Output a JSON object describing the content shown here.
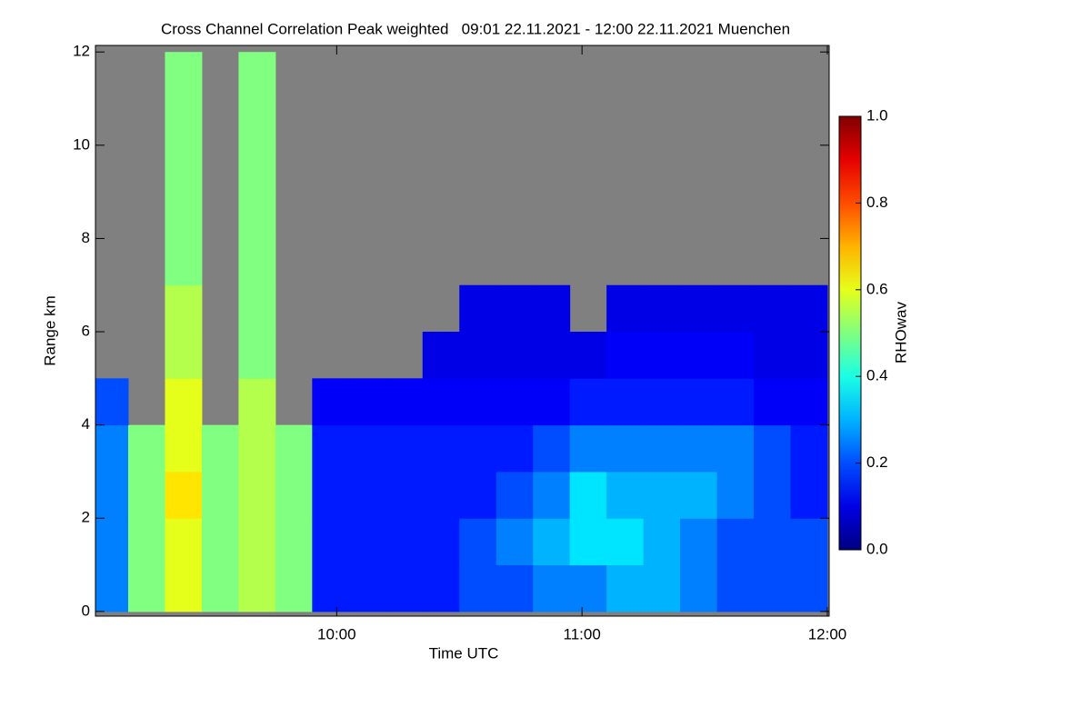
{
  "chart_data": {
    "type": "heatmap",
    "title": "Cross Channel Correlation Peak weighted   09:01 22.11.2021 - 12:00 22.11.2021 Muenchen",
    "xlabel": "Time UTC",
    "ylabel": "Range km",
    "xlim": [
      9.0167,
      12.0
    ],
    "ylim": [
      -0.1,
      12.14
    ],
    "xticks": [
      {
        "value": 10,
        "label": "10:00"
      },
      {
        "value": 11,
        "label": "11:00"
      },
      {
        "value": 12,
        "label": "12:00"
      }
    ],
    "yticks": [
      0,
      2,
      4,
      6,
      8,
      10,
      12
    ],
    "xbins": [
      9.0,
      9.15,
      9.3,
      9.45,
      9.6,
      9.75,
      9.9,
      10.05,
      10.2,
      10.35,
      10.5,
      10.65,
      10.8,
      10.95,
      11.1,
      11.25,
      11.4,
      11.55,
      11.7,
      11.85,
      12.0
    ],
    "ybins": [
      0,
      1,
      2,
      3,
      4,
      5,
      6,
      7,
      8,
      9,
      10,
      11,
      12
    ],
    "z": [
      [
        0.25,
        0.5,
        0.6,
        0.5,
        0.55,
        0.5,
        0.15,
        0.15,
        0.15,
        0.15,
        0.2,
        0.2,
        0.25,
        0.25,
        0.3,
        0.3,
        0.25,
        0.2,
        0.2,
        0.2
      ],
      [
        0.25,
        0.5,
        0.6,
        0.5,
        0.55,
        0.5,
        0.15,
        0.15,
        0.15,
        0.15,
        0.2,
        0.25,
        0.3,
        0.35,
        0.35,
        0.3,
        0.25,
        0.2,
        0.2,
        0.2
      ],
      [
        0.25,
        0.5,
        0.65,
        0.5,
        0.55,
        0.5,
        0.15,
        0.15,
        0.15,
        0.15,
        0.15,
        0.2,
        0.25,
        0.35,
        0.3,
        0.3,
        0.3,
        0.25,
        0.2,
        0.15
      ],
      [
        0.25,
        0.5,
        0.6,
        0.5,
        0.55,
        0.5,
        0.15,
        0.15,
        0.15,
        0.15,
        0.15,
        0.15,
        0.2,
        0.25,
        0.25,
        0.25,
        0.25,
        0.25,
        0.2,
        0.15
      ],
      [
        0.2,
        null,
        0.6,
        null,
        0.55,
        null,
        0.12,
        0.12,
        0.12,
        0.12,
        0.12,
        0.12,
        0.12,
        0.15,
        0.15,
        0.15,
        0.15,
        0.15,
        0.12,
        0.12
      ],
      [
        null,
        null,
        0.55,
        null,
        0.5,
        null,
        null,
        null,
        null,
        0.1,
        0.1,
        0.1,
        0.1,
        0.1,
        0.12,
        0.12,
        0.12,
        0.12,
        0.1,
        0.1
      ],
      [
        null,
        null,
        0.55,
        null,
        0.5,
        null,
        null,
        null,
        null,
        null,
        0.1,
        0.1,
        0.1,
        null,
        0.1,
        0.1,
        0.1,
        0.1,
        0.1,
        0.1
      ],
      [
        null,
        null,
        0.5,
        null,
        0.5,
        null,
        null,
        null,
        null,
        null,
        null,
        null,
        null,
        null,
        null,
        null,
        null,
        null,
        null,
        null
      ],
      [
        null,
        null,
        0.5,
        null,
        0.5,
        null,
        null,
        null,
        null,
        null,
        null,
        null,
        null,
        null,
        null,
        null,
        null,
        null,
        null,
        null
      ],
      [
        null,
        null,
        0.5,
        null,
        0.5,
        null,
        null,
        null,
        null,
        null,
        null,
        null,
        null,
        null,
        null,
        null,
        null,
        null,
        null,
        null
      ],
      [
        null,
        null,
        0.5,
        null,
        0.5,
        null,
        null,
        null,
        null,
        null,
        null,
        null,
        null,
        null,
        null,
        null,
        null,
        null,
        null,
        null
      ],
      [
        null,
        null,
        0.5,
        null,
        0.5,
        null,
        null,
        null,
        null,
        null,
        null,
        null,
        null,
        null,
        null,
        null,
        null,
        null,
        null,
        null
      ]
    ],
    "missing_color": "#808080",
    "colormap": "jet",
    "colorbar": {
      "label": "RHOwav",
      "lim": [
        0,
        1
      ],
      "ticks": [
        {
          "value": 0,
          "label": "0.0"
        },
        {
          "value": 0.2,
          "label": "0.2"
        },
        {
          "value": 0.4,
          "label": "0.4"
        },
        {
          "value": 0.6,
          "label": "0.6"
        },
        {
          "value": 0.8,
          "label": "0.8"
        },
        {
          "value": 1,
          "label": "1.0"
        }
      ]
    }
  }
}
